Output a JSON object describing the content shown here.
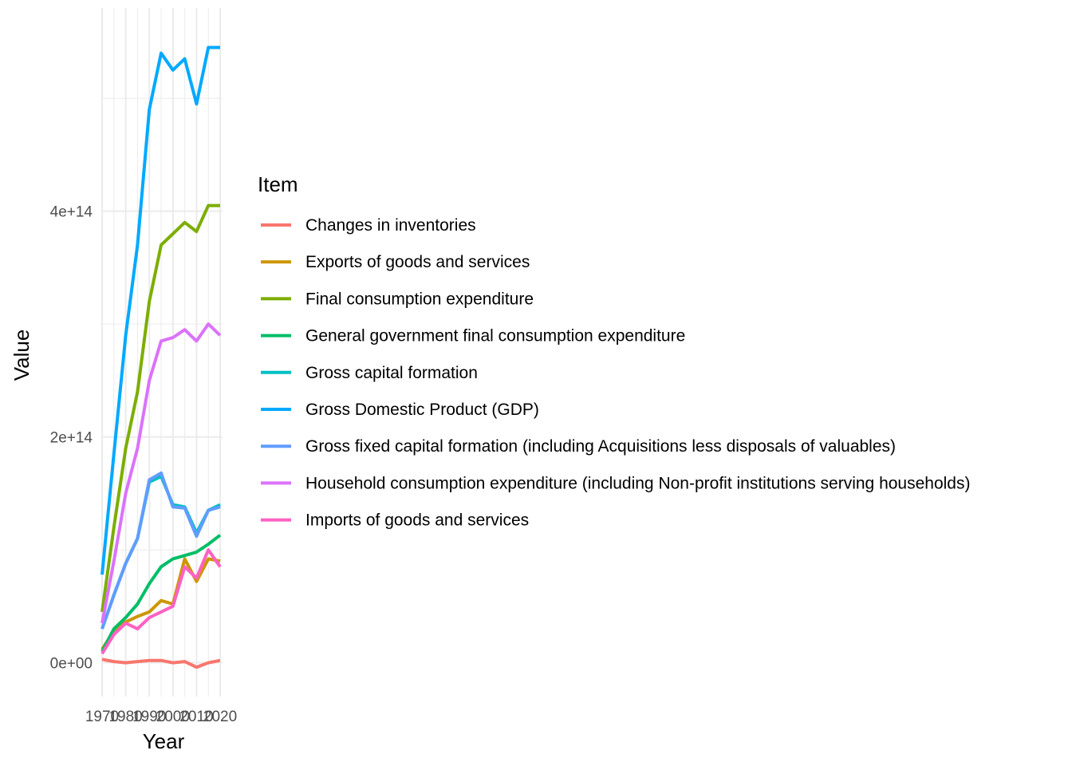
{
  "chart_data": {
    "type": "line",
    "title": "",
    "xlabel": "Year",
    "ylabel": "Value",
    "xlim": [
      1970,
      2021
    ],
    "ylim": [
      -30000000000000.0,
      580000000000000.0
    ],
    "x_ticks": [
      {
        "value": 1970,
        "label": "1970"
      },
      {
        "value": 1980,
        "label": "1980"
      },
      {
        "value": 1990,
        "label": "1990"
      },
      {
        "value": 2000,
        "label": "2000"
      },
      {
        "value": 2010,
        "label": "2010"
      },
      {
        "value": 2020,
        "label": "2020"
      }
    ],
    "y_ticks": [
      {
        "value": 0,
        "label": "0e+00"
      },
      {
        "value": 200000000000000,
        "label": "2e+14"
      },
      {
        "value": 400000000000000,
        "label": "4e+14"
      }
    ],
    "grid": true,
    "legend": {
      "title": "Item",
      "position": "right"
    },
    "x": [
      1970,
      1975,
      1980,
      1985,
      1990,
      1995,
      2000,
      2005,
      2010,
      2015,
      2020
    ],
    "series": [
      {
        "name": "Changes in inventories",
        "color": "#F8766D",
        "values": [
          3000000000000.0,
          1000000000000.0,
          0,
          1000000000000.0,
          2000000000000.0,
          2000000000000.0,
          0,
          1000000000000.0,
          -4000000000000.0,
          0,
          2000000000000.0
        ]
      },
      {
        "name": "Exports of goods and services",
        "color": "#CD9600",
        "values": [
          12000000000000.0,
          28000000000000.0,
          36000000000000.0,
          41000000000000.0,
          45000000000000.0,
          55000000000000.0,
          52000000000000.0,
          92000000000000.0,
          72000000000000.0,
          92000000000000.0,
          90000000000000.0
        ]
      },
      {
        "name": "Final consumption expenditure",
        "color": "#7CAE00",
        "values": [
          45000000000000.0,
          120000000000000.0,
          190000000000000.0,
          240000000000000.0,
          320000000000000.0,
          370000000000000.0,
          380000000000000.0,
          390000000000000.0,
          382000000000000.0,
          405000000000000.0,
          405000000000000.0
        ]
      },
      {
        "name": "General government final consumption expenditure",
        "color": "#00BE67",
        "values": [
          10000000000000.0,
          30000000000000.0,
          40000000000000.0,
          52000000000000.0,
          70000000000000.0,
          85000000000000.0,
          92000000000000.0,
          95000000000000.0,
          98000000000000.0,
          105000000000000.0,
          113000000000000.0
        ]
      },
      {
        "name": "Gross capital formation",
        "color": "#00BFC4",
        "values": [
          30000000000000.0,
          60000000000000.0,
          88000000000000.0,
          110000000000000.0,
          160000000000000.0,
          165000000000000.0,
          140000000000000.0,
          138000000000000.0,
          115000000000000.0,
          135000000000000.0,
          140000000000000.0
        ]
      },
      {
        "name": "Gross Domestic Product (GDP)",
        "color": "#00A9FF",
        "values": [
          78000000000000.0,
          185000000000000.0,
          290000000000000.0,
          370000000000000.0,
          490000000000000.0,
          540000000000000.0,
          525000000000000.0,
          535000000000000.0,
          495000000000000.0,
          545000000000000.0,
          545000000000000.0
        ]
      },
      {
        "name": "Gross fixed capital formation (including Acquisitions less disposals of valuables)",
        "color": "#619CFF",
        "values": [
          30000000000000.0,
          60000000000000.0,
          88000000000000.0,
          110000000000000.0,
          162000000000000.0,
          168000000000000.0,
          138000000000000.0,
          137000000000000.0,
          112000000000000.0,
          135000000000000.0,
          138000000000000.0
        ]
      },
      {
        "name": "Household consumption expenditure (including Non-profit institutions serving households)",
        "color": "#DB72FB",
        "values": [
          35000000000000.0,
          90000000000000.0,
          150000000000000.0,
          190000000000000.0,
          250000000000000.0,
          285000000000000.0,
          288000000000000.0,
          295000000000000.0,
          285000000000000.0,
          300000000000000.0,
          290000000000000.0
        ]
      },
      {
        "name": "Imports of goods and services",
        "color": "#FF61C3",
        "values": [
          8000000000000.0,
          25000000000000.0,
          35000000000000.0,
          30000000000000.0,
          40000000000000.0,
          45000000000000.0,
          50000000000000.0,
          85000000000000.0,
          75000000000000.0,
          100000000000000.0,
          85000000000000.0
        ]
      }
    ]
  }
}
